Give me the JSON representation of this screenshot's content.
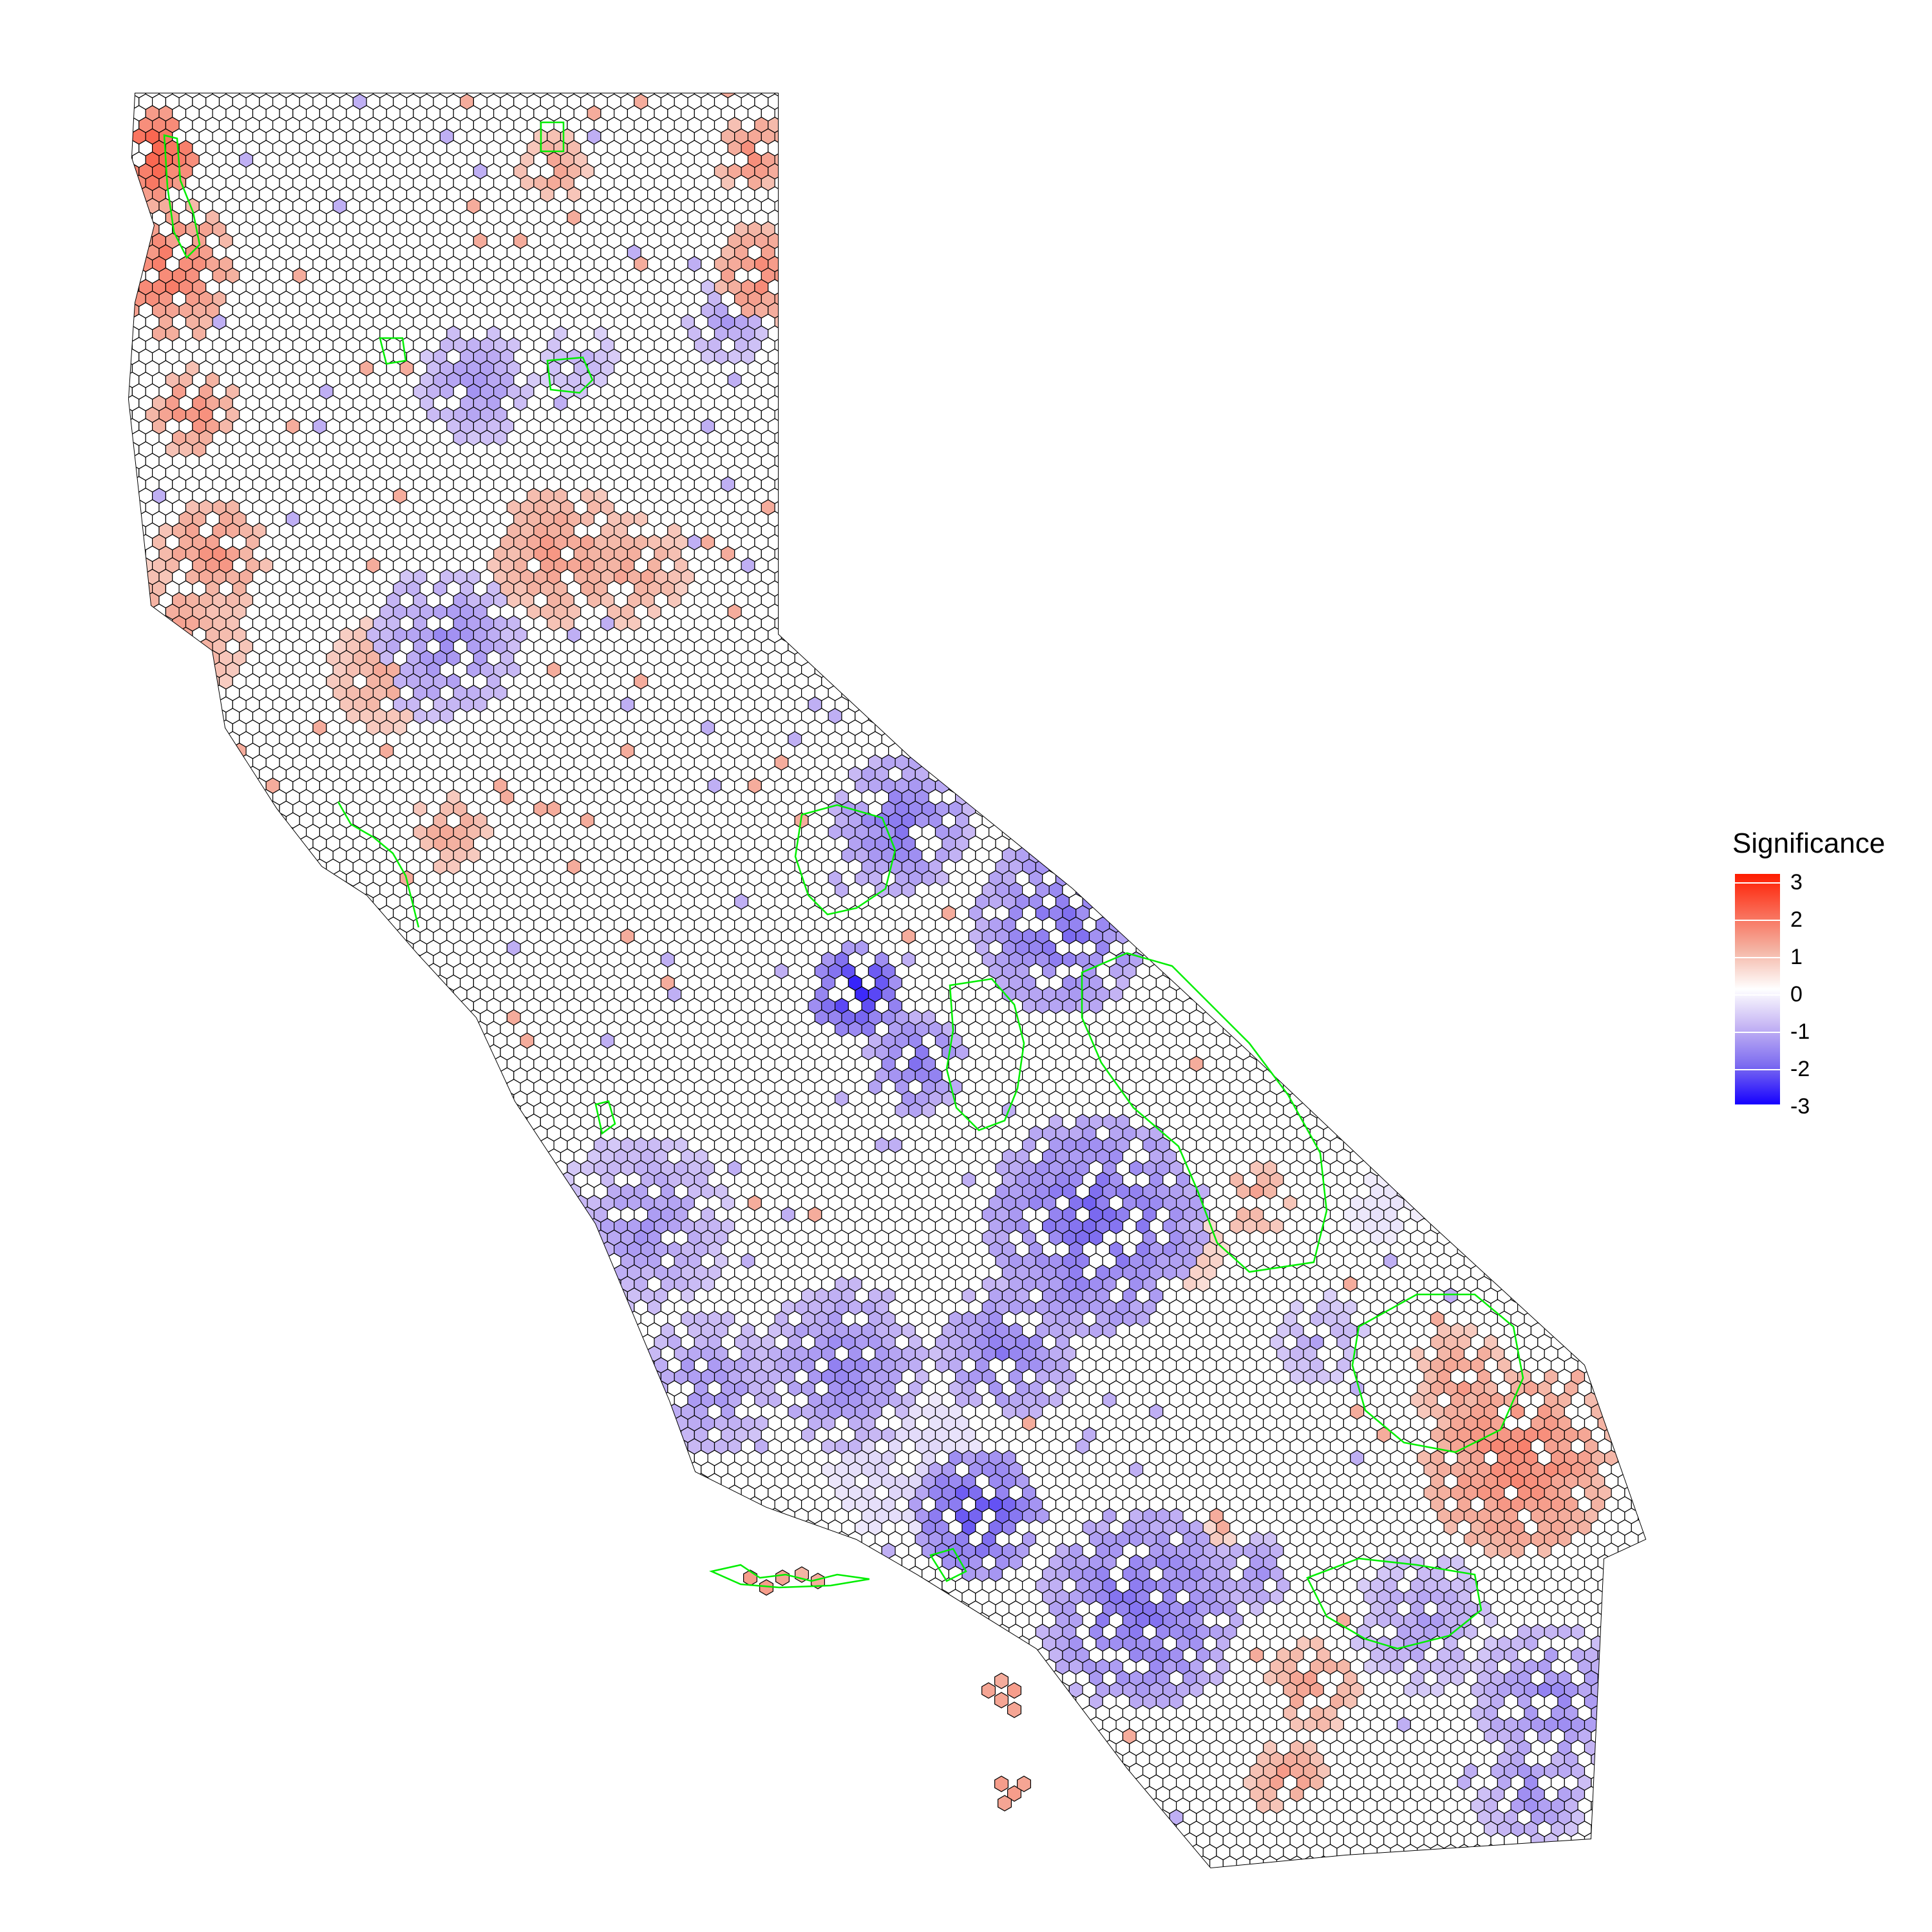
{
  "legend": {
    "title": "Significance",
    "ticks": [
      "3",
      "2",
      "1",
      "0",
      "-1",
      "-2",
      "-3"
    ],
    "scale": {
      "max": 3,
      "min": -3,
      "high_color": "#ff1c00",
      "mid_color": "#ffffff",
      "low_color": "#1500ff"
    }
  },
  "map": {
    "hex_outline_color": "#000000",
    "boundary_outline_color": "#00ee00"
  }
}
